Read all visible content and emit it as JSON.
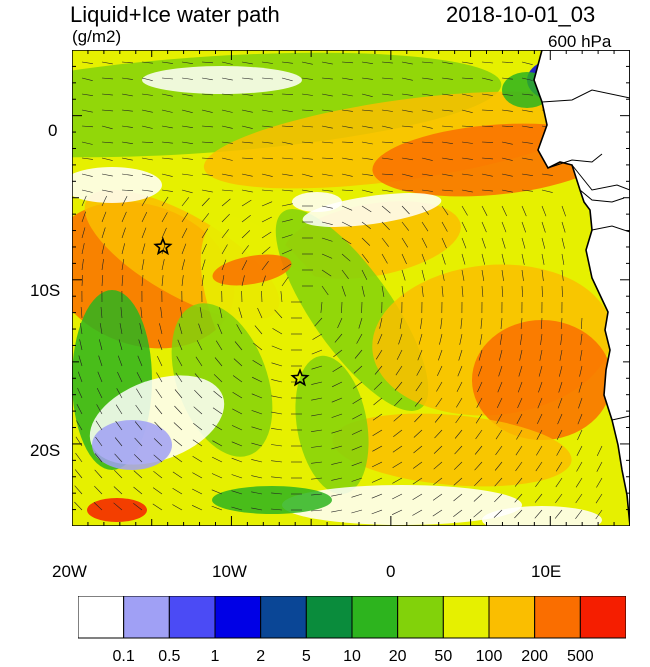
{
  "header": {
    "title": "Liquid+Ice water path",
    "datetime": "2018-10-01_03",
    "units": "(g/m2)",
    "level": "600 hPa"
  },
  "axes": {
    "lon_labels": [
      "20W",
      "10W",
      "0",
      "10E"
    ],
    "lat_labels": [
      "0",
      "10S",
      "20S"
    ]
  },
  "markers": [
    {
      "name": "star-1",
      "lon": -14.3,
      "lat": -8.0
    },
    {
      "name": "star-2",
      "lon": -5.7,
      "lat": -16.0
    }
  ],
  "colorbar": {
    "labels": [
      "0.1",
      "0.5",
      "1",
      "2",
      "5",
      "10",
      "20",
      "50",
      "100",
      "200",
      "500"
    ],
    "colors": [
      "#ffffff",
      "#a0a0f5",
      "#4b4bf5",
      "#0000e6",
      "#0a4696",
      "#0a8c3c",
      "#2db41e",
      "#82d20a",
      "#e6f000",
      "#fabe00",
      "#fa6e00",
      "#f51e00"
    ]
  },
  "colors": {
    "land": "#ffffff",
    "coast": "#000000"
  }
}
